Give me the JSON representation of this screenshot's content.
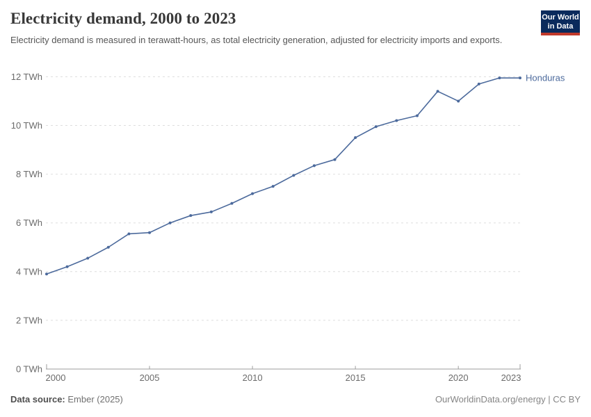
{
  "header": {
    "title": "Electricity demand, 2000 to 2023",
    "subtitle": "Electricity demand is measured in terawatt-hours, as total electricity generation, adjusted for electricity imports and exports.",
    "logo": {
      "line1": "Our World",
      "line2": "in Data",
      "background_color": "#0a2a5c",
      "accent_color": "#c0392b"
    }
  },
  "chart_data": {
    "type": "line",
    "title": "Electricity demand, 2000 to 2023",
    "unit": "TWh",
    "xlabel": "",
    "ylabel": "",
    "xlim": [
      2000,
      2023
    ],
    "ylim": [
      0,
      12
    ],
    "xticks": [
      2000,
      2005,
      2010,
      2015,
      2020,
      2023
    ],
    "yticks": [
      0,
      2,
      4,
      6,
      8,
      10,
      12
    ],
    "grid": "horizontal-dashed",
    "legend_position": "end-of-line-label",
    "x": [
      2000,
      2001,
      2002,
      2003,
      2004,
      2005,
      2006,
      2007,
      2008,
      2009,
      2010,
      2011,
      2012,
      2013,
      2014,
      2015,
      2016,
      2017,
      2018,
      2019,
      2020,
      2021,
      2022,
      2023
    ],
    "series": [
      {
        "name": "Honduras",
        "color": "#4c6a9c",
        "values": [
          3.9,
          4.2,
          4.55,
          5.0,
          5.55,
          5.6,
          6.0,
          6.3,
          6.45,
          6.8,
          7.2,
          7.5,
          7.95,
          8.35,
          8.6,
          9.5,
          9.95,
          10.2,
          10.4,
          11.4,
          11.0,
          11.7,
          11.95,
          11.95
        ]
      }
    ],
    "colors": {
      "gridline": "#dedede",
      "axis": "#9e9e9e",
      "tick_label": "#6b6b6b"
    }
  },
  "footer": {
    "source_label": "Data source:",
    "source_value": "Ember (2025)",
    "attribution": "OurWorldinData.org/energy | CC BY"
  }
}
